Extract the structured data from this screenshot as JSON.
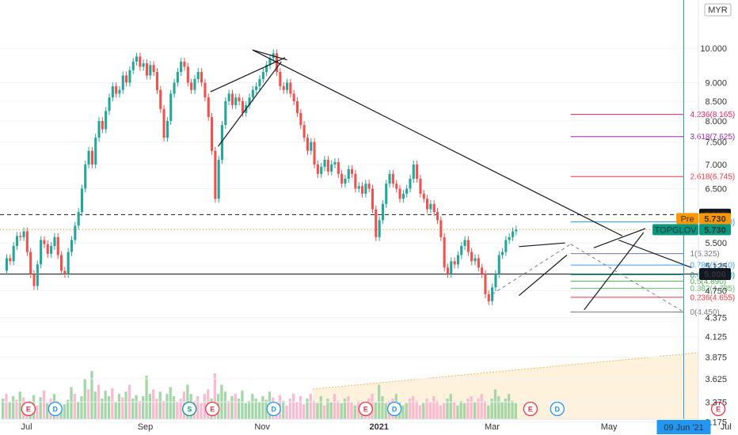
{
  "chart_data": {
    "type": "candlestick",
    "symbol": "TOPGLOV",
    "currency": "MYR",
    "scale": "log",
    "y_ticks": [
      10.0,
      9.0,
      8.5,
      8.0,
      7.5,
      7.0,
      6.5,
      5.5,
      5.125,
      4.75,
      4.375,
      4.125,
      3.875,
      3.625,
      3.375,
      3.175
    ],
    "y_tick_labels": [
      "10.000",
      "9.000",
      "8.500",
      "8.000",
      "7.500",
      "7.000",
      "6.500",
      "5.500",
      "5.125",
      "4.750",
      "4.375",
      "4.125",
      "3.875",
      "3.625",
      "3.375",
      "3.175"
    ],
    "ylim": [
      3.05,
      11.6
    ],
    "x_labels": [
      {
        "label": "Jul",
        "day": 13
      },
      {
        "label": "Sep",
        "day": 75
      },
      {
        "label": "Nov",
        "day": 136
      },
      {
        "label": "2021",
        "day": 197
      },
      {
        "label": "Mar",
        "day": 256
      },
      {
        "label": "May",
        "day": 317
      },
      {
        "label": "Jul",
        "day": 378
      }
    ],
    "crosshair_date_label": "09 Jun '21",
    "crosshair_day": 356,
    "price_labels": [
      {
        "label": "6.000",
        "value": 6.0,
        "style": "black"
      },
      {
        "label": "Pre",
        "value": 5.73,
        "style": "orange"
      },
      {
        "label": "5.730",
        "value": 5.73,
        "style": "orange"
      },
      {
        "label": "TOPGLOV",
        "value": 5.73,
        "style": "teal"
      },
      {
        "label": "5.730",
        "value": 5.73,
        "style": "teal"
      },
      {
        "label": "5.000",
        "value": 5.0,
        "style": "black"
      }
    ],
    "horizontal_lines": [
      {
        "value": 6.0,
        "style": "dashed"
      },
      {
        "value": 5.0,
        "style": "solid"
      },
      {
        "value": 5.73,
        "style": "dotted-orange"
      }
    ],
    "fib_levels": [
      {
        "label": "4.236(8.165)",
        "value": 8.165,
        "color": "#e91e63"
      },
      {
        "label": "3.618(7.625)",
        "value": 7.625,
        "color": "#9c27b0"
      },
      {
        "label": "2.618(6.745)",
        "value": 6.745,
        "color": "#f23645"
      },
      {
        "label": "1.618(5.870)",
        "value": 5.87,
        "color": "#2196f3"
      },
      {
        "label": "1(5.325)",
        "value": 5.325,
        "color": "#787b86"
      },
      {
        "label": "0.786(5.140)",
        "value": 5.14,
        "color": "#42a5f5"
      },
      {
        "label": "0.618(4.990)",
        "value": 4.99,
        "color": "#089981"
      },
      {
        "label": "0.5(4.890)",
        "value": 4.89,
        "color": "#4caf50"
      },
      {
        "label": "0.382(4.785)",
        "value": 4.785,
        "color": "#66bb6a"
      },
      {
        "label": "0.236(4.655)",
        "value": 4.655,
        "color": "#f23645"
      },
      {
        "label": "0(4.450)",
        "value": 4.45,
        "color": "#787b86"
      }
    ],
    "fib_x_range": [
      297,
      356
    ],
    "trendlines": [
      {
        "from": [
          131,
          9.95
        ],
        "to": [
          324,
          5.62
        ]
      },
      {
        "from": [
          131,
          9.95
        ],
        "to": [
          149,
          9.65
        ]
      },
      {
        "from": [
          109,
          8.75
        ],
        "to": [
          148,
          9.72
        ]
      },
      {
        "from": [
          113,
          7.4
        ],
        "to": [
          146,
          9.6
        ]
      },
      {
        "from": [
          270,
          5.44
        ],
        "to": [
          294,
          5.5
        ]
      },
      {
        "from": [
          270,
          4.68
        ],
        "to": [
          295,
          5.3
        ]
      },
      {
        "from": [
          309,
          5.42
        ],
        "to": [
          336,
          5.75
        ]
      },
      {
        "from": [
          304,
          4.48
        ],
        "to": [
          335,
          5.68
        ]
      },
      {
        "from": [
          322,
          5.55
        ],
        "to": [
          360,
          5.1
        ]
      },
      {
        "from": [
          297,
          5.48
        ],
        "to": [
          356,
          4.45
        ],
        "style": "dashed"
      },
      {
        "from": [
          256,
          4.7
        ],
        "to": [
          297,
          5.48
        ],
        "style": "dashed"
      }
    ],
    "event_markers": [
      {
        "label": "E",
        "day": 14,
        "color": "#f23645"
      },
      {
        "label": "D",
        "day": 28,
        "color": "#2196f3"
      },
      {
        "label": "S",
        "day": 98,
        "color": "#089981"
      },
      {
        "label": "E",
        "day": 110,
        "color": "#f23645"
      },
      {
        "label": "D",
        "day": 142,
        "color": "#2196f3"
      },
      {
        "label": "E",
        "day": 190,
        "color": "#f23645"
      },
      {
        "label": "D",
        "day": 205,
        "color": "#2196f3"
      },
      {
        "label": "E",
        "day": 276,
        "color": "#f23645"
      },
      {
        "label": "D",
        "day": 290,
        "color": "#2196f3"
      },
      {
        "label": "E",
        "day": 374,
        "color": "#f23645"
      }
    ],
    "prices": [
      5.05,
      5.25,
      5.2,
      5.45,
      5.62,
      5.6,
      5.7,
      5.35,
      5.0,
      4.82,
      5.15,
      5.55,
      5.48,
      5.32,
      5.45,
      5.6,
      5.3,
      5.05,
      5.0,
      5.35,
      5.55,
      5.8,
      6.05,
      6.5,
      7.0,
      7.3,
      7.0,
      7.6,
      8.0,
      7.8,
      8.25,
      8.6,
      8.9,
      8.7,
      8.8,
      9.2,
      9.0,
      9.35,
      9.6,
      9.75,
      9.45,
      9.55,
      9.2,
      9.5,
      9.3,
      8.8,
      8.3,
      7.6,
      8.0,
      8.7,
      9.0,
      9.3,
      9.6,
      9.45,
      9.0,
      8.8,
      9.1,
      9.3,
      9.0,
      8.6,
      8.1,
      7.3,
      6.3,
      7.1,
      7.9,
      8.5,
      8.7,
      8.4,
      8.6,
      8.5,
      8.2,
      8.4,
      8.6,
      8.8,
      8.9,
      9.1,
      9.3,
      9.5,
      9.7,
      9.85,
      9.3,
      8.9,
      8.8,
      9.0,
      8.7,
      8.5,
      8.2,
      7.9,
      7.6,
      7.3,
      7.5,
      7.0,
      6.8,
      6.95,
      7.1,
      6.85,
      7.0,
      7.05,
      6.8,
      6.6,
      6.7,
      6.9,
      6.8,
      6.5,
      6.55,
      6.4,
      6.6,
      6.5,
      6.1,
      5.6,
      5.9,
      6.2,
      6.6,
      6.8,
      6.6,
      6.5,
      6.3,
      6.4,
      6.5,
      6.7,
      7.0,
      6.7,
      6.4,
      6.3,
      6.1,
      6.2,
      6.05,
      5.9,
      5.6,
      5.1,
      5.0,
      5.2,
      5.15,
      5.3,
      5.45,
      5.55,
      5.35,
      5.2,
      5.25,
      5.1,
      5.0,
      4.7,
      4.6,
      4.8,
      5.0,
      5.3,
      5.35,
      5.55,
      5.6,
      5.7,
      5.73
    ],
    "volumes": [
      18,
      22,
      15,
      20,
      17,
      24,
      19,
      14,
      16,
      21,
      12,
      19,
      25,
      14,
      18,
      22,
      16,
      10,
      13,
      17,
      28,
      22,
      15,
      20,
      35,
      26,
      42,
      24,
      30,
      18,
      25,
      20,
      27,
      15,
      22,
      19,
      24,
      30,
      18,
      21,
      16,
      20,
      38,
      22,
      26,
      18,
      24,
      16,
      22,
      28,
      20,
      15,
      18,
      24,
      30,
      22,
      16,
      20,
      14,
      22,
      26,
      18,
      40,
      22,
      30,
      24,
      16,
      20,
      22,
      18,
      25,
      14,
      16,
      22,
      18,
      15,
      20,
      17,
      24,
      19,
      14,
      21,
      16,
      12,
      18,
      22,
      15,
      20,
      13,
      18,
      22,
      16,
      14,
      20,
      12,
      18,
      15,
      22,
      16,
      14,
      18,
      20,
      15,
      12,
      16,
      14,
      10,
      18,
      22,
      15,
      30,
      20,
      14,
      16,
      18,
      22,
      15,
      12,
      14,
      18,
      20,
      16,
      12,
      14,
      18,
      15,
      20,
      16,
      12,
      14,
      18,
      22,
      15,
      12,
      16,
      14,
      18,
      20,
      15,
      18,
      22,
      16,
      12,
      18,
      26,
      20,
      15,
      18,
      22,
      16,
      14
    ],
    "volume_colors": [
      "g",
      "r",
      "g",
      "g",
      "r",
      "g",
      "r",
      "r",
      "g",
      "g",
      "r",
      "g",
      "r",
      "g",
      "r",
      "g",
      "r",
      "g",
      "g",
      "g",
      "g",
      "r",
      "g",
      "g",
      "g",
      "r",
      "g",
      "g",
      "r",
      "g",
      "g",
      "g",
      "r",
      "g",
      "g",
      "r",
      "g",
      "r",
      "g",
      "g",
      "r",
      "g",
      "g",
      "g",
      "r",
      "r",
      "g",
      "r",
      "g",
      "g",
      "g",
      "r",
      "r",
      "r",
      "g",
      "g",
      "r",
      "r",
      "r",
      "r",
      "r",
      "g",
      "r",
      "g",
      "g",
      "g",
      "r",
      "g",
      "r",
      "g",
      "g",
      "g",
      "g",
      "g",
      "g",
      "g",
      "g",
      "g",
      "g",
      "r",
      "r",
      "r",
      "g",
      "r",
      "r",
      "r",
      "r",
      "r",
      "r",
      "g",
      "r",
      "r",
      "g",
      "g",
      "r",
      "g",
      "g",
      "r",
      "r",
      "g",
      "g",
      "r",
      "r",
      "g",
      "r",
      "g",
      "r",
      "r",
      "r",
      "g",
      "g",
      "g",
      "g",
      "r",
      "r",
      "g",
      "g",
      "g",
      "g",
      "r",
      "r",
      "r",
      "r",
      "g",
      "r",
      "r",
      "r",
      "r",
      "r",
      "r",
      "g",
      "g",
      "r",
      "g",
      "g",
      "g",
      "r",
      "r",
      "g",
      "r",
      "r",
      "r",
      "g",
      "g",
      "g",
      "g",
      "g",
      "g",
      "g",
      "g",
      "g"
    ]
  }
}
